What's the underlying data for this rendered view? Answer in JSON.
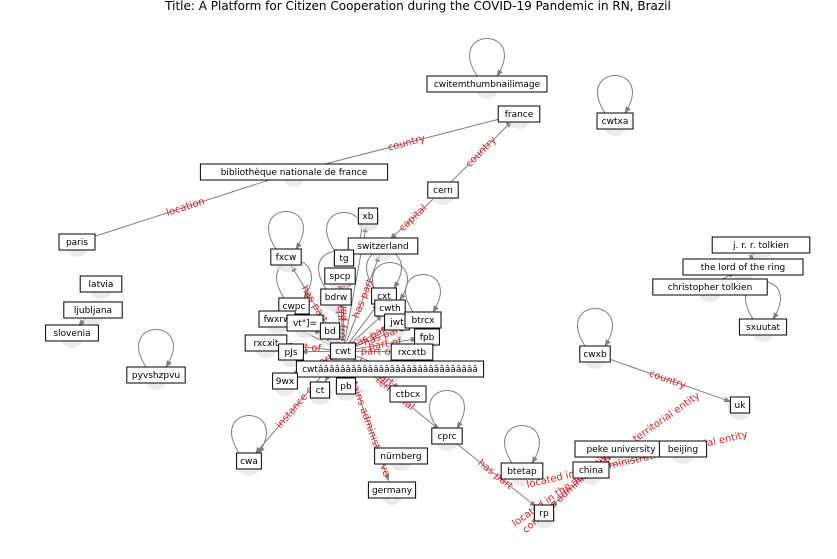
{
  "title": "Title: A Platform for Citizen Cooperation during the COVID-19 Pandemic in RN, Brazil",
  "colors": {
    "edge": "#808080",
    "edge_label": "#d62728",
    "node_border": "#000000",
    "halo": "#e4e4e4"
  },
  "nodes": [
    {
      "id": "cwitemthumbnailimage",
      "label": "cwitemthumbnailimage",
      "loop": true
    },
    {
      "id": "france",
      "label": "france"
    },
    {
      "id": "cwtxa",
      "label": "cwtxa",
      "loop": true
    },
    {
      "id": "bnf",
      "label": "bibliothèque nationale de france"
    },
    {
      "id": "cern",
      "label": "cern"
    },
    {
      "id": "xb",
      "label": "xb"
    },
    {
      "id": "switzerland",
      "label": "switzerland"
    },
    {
      "id": "paris",
      "label": "paris"
    },
    {
      "id": "fxcw",
      "label": "fxcw",
      "loop": true
    },
    {
      "id": "tg",
      "label": "tg",
      "loop": true
    },
    {
      "id": "spcp",
      "label": "spcp"
    },
    {
      "id": "jrrt",
      "label": "j. r. r. tolkien"
    },
    {
      "id": "lotr",
      "label": "the lord of the ring"
    },
    {
      "id": "ctolkien",
      "label": "christopher tolkien"
    },
    {
      "id": "sxuutat",
      "label": "sxuutat",
      "loop": true
    },
    {
      "id": "latvia",
      "label": "latvia"
    },
    {
      "id": "ljubljana",
      "label": "ljubljana"
    },
    {
      "id": "slovenia",
      "label": "slovenia"
    },
    {
      "id": "bdrw",
      "label": "bdrw",
      "loop": true
    },
    {
      "id": "cxt",
      "label": "cxt",
      "loop": true
    },
    {
      "id": "cwpc",
      "label": "cwpc",
      "loop": true
    },
    {
      "id": "cwth",
      "label": "cwth",
      "loop": true
    },
    {
      "id": "fwxrw",
      "label": "fwxrw"
    },
    {
      "id": "vt",
      "label": "vt\"]="
    },
    {
      "id": "jwt",
      "label": "jwt"
    },
    {
      "id": "btrcx",
      "label": "btrcx",
      "loop": true
    },
    {
      "id": "bd",
      "label": "bd"
    },
    {
      "id": "fpb",
      "label": "fpb"
    },
    {
      "id": "rxcxit",
      "label": "rxcxit"
    },
    {
      "id": "pjs",
      "label": "pJs"
    },
    {
      "id": "cwt",
      "label": "cwt"
    },
    {
      "id": "rxcxtb",
      "label": "rxcxtb"
    },
    {
      "id": "cwxb",
      "label": "cwxb",
      "loop": true
    },
    {
      "id": "pyvshzpvu",
      "label": "pyvshzpvu",
      "loop": true
    },
    {
      "id": "cwtlong",
      "label": "cwtâââââââââââââââââââââââââââââ"
    },
    {
      "id": "wx9",
      "label": "9wx"
    },
    {
      "id": "ct",
      "label": "ct"
    },
    {
      "id": "pb",
      "label": "pb"
    },
    {
      "id": "ctbcx",
      "label": "ctbcx"
    },
    {
      "id": "uk",
      "label": "uk"
    },
    {
      "id": "cprc",
      "label": "cprc",
      "loop": true
    },
    {
      "id": "peke",
      "label": "peke university"
    },
    {
      "id": "beijing",
      "label": "beijing"
    },
    {
      "id": "cwa",
      "label": "cwa",
      "loop": true
    },
    {
      "id": "nurnberg",
      "label": "nürnberg"
    },
    {
      "id": "btetap",
      "label": "btetap",
      "loop": true
    },
    {
      "id": "china",
      "label": "china"
    },
    {
      "id": "germany",
      "label": "germany"
    },
    {
      "id": "rp",
      "label": "rp"
    }
  ],
  "edges": [
    {
      "source": "bnf",
      "target": "france",
      "label": "country"
    },
    {
      "source": "cern",
      "target": "france",
      "label": "country"
    },
    {
      "source": "paris",
      "target": "bnf",
      "label": "location"
    },
    {
      "source": "cern",
      "target": "switzerland",
      "label": "capital"
    },
    {
      "source": "ljubljana",
      "target": "slovenia",
      "label": ""
    },
    {
      "source": "ctolkien",
      "target": "lotr",
      "label": ""
    },
    {
      "source": "lotr",
      "target": "jrrt",
      "label": ""
    },
    {
      "source": "cwxb",
      "target": "uk",
      "label": "country"
    },
    {
      "source": "cwt",
      "target": "cwa",
      "label": "instance of"
    },
    {
      "source": "cwt",
      "target": "germany",
      "label": "contains administrative"
    },
    {
      "source": "cwt",
      "target": "cprc",
      "label": "territorial"
    },
    {
      "source": "cprc",
      "target": "rp",
      "label": "has part"
    },
    {
      "source": "china",
      "target": "rp",
      "label": "contains administrative"
    },
    {
      "source": "china",
      "target": "peke",
      "label": "located in the administrative territorial entity"
    },
    {
      "source": "beijing",
      "target": "china",
      "label": "located in the administrative territorial entity"
    },
    {
      "source": "cwt",
      "target": "fxcw",
      "label": "has part"
    },
    {
      "source": "cwt",
      "target": "spcp",
      "label": "different from"
    },
    {
      "source": "cwt",
      "target": "tg",
      "label": "part of"
    },
    {
      "source": "cwt",
      "target": "xb",
      "label": ""
    },
    {
      "source": "cwt",
      "target": "bdrw",
      "label": ""
    },
    {
      "source": "cwt",
      "target": "cxt",
      "label": ""
    },
    {
      "source": "cwt",
      "target": "cwth",
      "label": ""
    },
    {
      "source": "cwt",
      "target": "jwt",
      "label": "has part"
    },
    {
      "source": "cwt",
      "target": "btrcx",
      "label": "has part"
    },
    {
      "source": "cwt",
      "target": "fpb",
      "label": "part of"
    },
    {
      "source": "cwt",
      "target": "rxcxtb",
      "label": "part of"
    },
    {
      "source": "cwt",
      "target": "bd",
      "label": ""
    },
    {
      "source": "cwt",
      "target": "vt",
      "label": ""
    },
    {
      "source": "cwt",
      "target": "cwpc",
      "label": "part of"
    },
    {
      "source": "cwt",
      "target": "fwxrw",
      "label": ""
    },
    {
      "source": "cwt",
      "target": "rxcxit",
      "label": "part of"
    },
    {
      "source": "cwt",
      "target": "pjs",
      "label": ""
    },
    {
      "source": "cwt",
      "target": "wx9",
      "label": "has part"
    },
    {
      "source": "cwt",
      "target": "ct",
      "label": ""
    },
    {
      "source": "cwt",
      "target": "pb",
      "label": ""
    },
    {
      "source": "cwt",
      "target": "ctbcx",
      "label": "has part"
    },
    {
      "source": "cwt",
      "target": "cwtlong",
      "label": ""
    },
    {
      "source": "cwt",
      "target": "switzerland",
      "label": "has part"
    }
  ]
}
